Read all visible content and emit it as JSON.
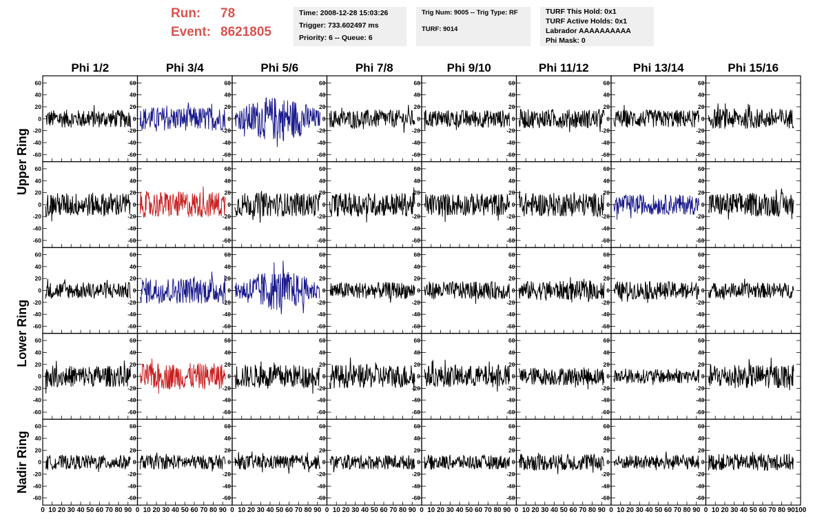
{
  "header": {
    "run_label": "Run:",
    "run_value": "78",
    "event_label": "Event:",
    "event_value": "8621805"
  },
  "info_time": {
    "line1": "Time: 2008-12-28 15:03:26",
    "line2": "Trigger: 733.602497 ms",
    "line3": "Priority: 6 -- Queue: 6"
  },
  "info_trig": {
    "line1": "Trig Num: 9005 -- Trig Type: RF",
    "line2": "TURF: 9014"
  },
  "info_turf": {
    "line1": "TURF This Hold: 0x1",
    "line2": "TURF Active Holds: 0x1",
    "line3": "Labrador AAAAAAAAAA",
    "line4": "Phi Mask: 0"
  },
  "colors": {
    "red_text": "#d9534f",
    "trace_black": "#000000",
    "trace_blue": "#1a1a8c",
    "trace_red": "#c81e1e",
    "info_bg": "#efefef"
  },
  "chart_data": {
    "type": "line",
    "columns": [
      "Phi 1/2",
      "Phi 3/4",
      "Phi 5/6",
      "Phi 7/8",
      "Phi 9/10",
      "Phi 11/12",
      "Phi 13/14",
      "Phi 15/16"
    ],
    "row_groups": [
      "Upper Ring",
      "Lower Ring",
      "Nadir Ring"
    ],
    "ylim": [
      -65,
      65
    ],
    "yticks": [
      -60,
      -40,
      -20,
      0,
      20,
      40,
      60
    ],
    "xlim": [
      0,
      100
    ],
    "xticks": [
      0,
      10,
      20,
      30,
      40,
      50,
      60,
      70,
      80,
      90,
      100
    ],
    "panel_colors": [
      [
        "black",
        "blue",
        "blue",
        "black",
        "black",
        "black",
        "black",
        "black"
      ],
      [
        "black",
        "red",
        "black",
        "black",
        "black",
        "black",
        "blue",
        "black"
      ],
      [
        "black",
        "blue",
        "blue",
        "black",
        "black",
        "black",
        "black",
        "black"
      ],
      [
        "black",
        "red",
        "black",
        "black",
        "black",
        "black",
        "black",
        "black"
      ],
      [
        "black",
        "black",
        "black",
        "black",
        "black",
        "black",
        "black",
        "black"
      ]
    ],
    "panel_amplitudes": [
      [
        15,
        20,
        38,
        15,
        15,
        16,
        15,
        17
      ],
      [
        20,
        22,
        20,
        20,
        19,
        20,
        17,
        20
      ],
      [
        14,
        22,
        34,
        14,
        15,
        16,
        15,
        13
      ],
      [
        18,
        22,
        20,
        20,
        18,
        15,
        12,
        20
      ],
      [
        12,
        12,
        12,
        12,
        12,
        14,
        12,
        14
      ]
    ]
  }
}
